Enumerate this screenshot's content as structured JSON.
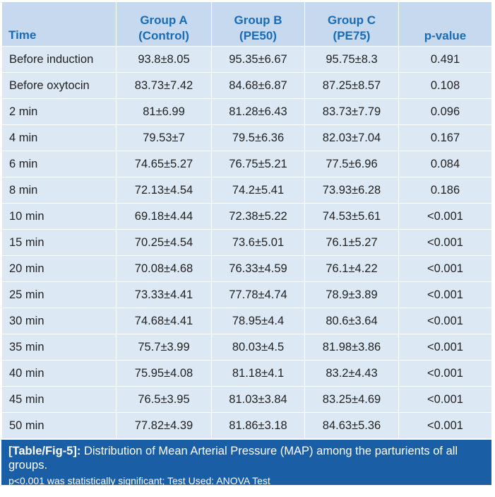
{
  "table": {
    "headers": [
      {
        "line1": "Time",
        "line2": ""
      },
      {
        "line1": "Group A",
        "line2": "(Control)"
      },
      {
        "line1": "Group B",
        "line2": "(PE50)"
      },
      {
        "line1": "Group C",
        "line2": "(PE75)"
      },
      {
        "line1": "p-value",
        "line2": ""
      }
    ],
    "rows": [
      [
        "Before induction",
        "93.8±8.05",
        "95.35±6.67",
        "95.75±8.3",
        "0.491"
      ],
      [
        "Before oxytocin",
        "83.73±7.42",
        "84.68±6.87",
        "87.25±8.57",
        "0.108"
      ],
      [
        "2 min",
        "81±6.99",
        "81.28±6.43",
        "83.73±7.79",
        "0.096"
      ],
      [
        "4 min",
        "79.53±7",
        "79.5±6.36",
        "82.03±7.04",
        "0.167"
      ],
      [
        "6 min",
        "74.65±5.27",
        "76.75±5.21",
        "77.5±6.96",
        "0.084"
      ],
      [
        "8 min",
        "72.13±4.54",
        "74.2±5.41",
        "73.93±6.28",
        "0.186"
      ],
      [
        "10 min",
        "69.18±4.44",
        "72.38±5.22",
        "74.53±5.61",
        "<0.001"
      ],
      [
        "15 min",
        "70.25±4.54",
        "73.6±5.01",
        "76.1±5.27",
        "<0.001"
      ],
      [
        "20 min",
        "70.08±4.68",
        "76.33±4.59",
        "76.1±4.22",
        "<0.001"
      ],
      [
        "25 min",
        "73.33±4.41",
        "77.78±4.74",
        "78.9±3.89",
        "<0.001"
      ],
      [
        "30 min",
        "74.68±4.41",
        "78.95±4.4",
        "80.6±3.64",
        "<0.001"
      ],
      [
        "35 min",
        "75.7±3.99",
        "80.03±4.5",
        "81.98±3.86",
        "<0.001"
      ],
      [
        "40 min",
        "75.95±4.08",
        "81.18±4.1",
        "83.2±4.43",
        "<0.001"
      ],
      [
        "45 min",
        "76.5±3.95",
        "81.03±3.84",
        "83.25±4.69",
        "<0.001"
      ],
      [
        "50 min",
        "77.82±4.39",
        "81.86±3.18",
        "84.63±5.36",
        "<0.001"
      ]
    ]
  },
  "caption": {
    "label": "[Table/Fig-5]:",
    "text": " Distribution of Mean Arterial Pressure (MAP) among the parturients of all groups.",
    "note": "p<0.001 was statistically significant; Test Used: ANOVA Test"
  },
  "colors": {
    "header_bg": "#c6d9ef",
    "header_text": "#1a6bb5",
    "row_bg": "#dde8f5",
    "caption_bg": "#1a5fa6"
  }
}
